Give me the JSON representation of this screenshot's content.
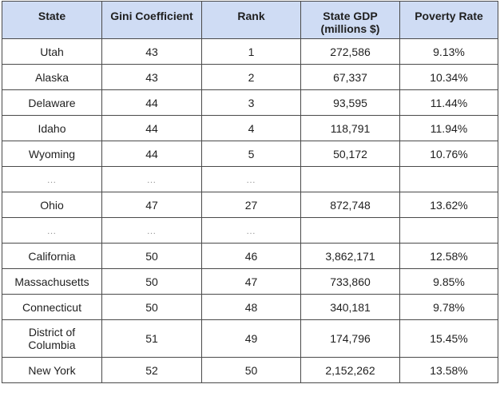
{
  "table": {
    "headers": [
      "State",
      "Gini Coefficient",
      "Rank",
      "State GDP\n(millions $)",
      "Poverty Rate"
    ],
    "rows": [
      [
        "Utah",
        "43",
        "1",
        "272,586",
        "9.13%"
      ],
      [
        "Alaska",
        "43",
        "2",
        "67,337",
        "10.34%"
      ],
      [
        "Delaware",
        "44",
        "3",
        "93,595",
        "11.44%"
      ],
      [
        "Idaho",
        "44",
        "4",
        "118,791",
        "11.94%"
      ],
      [
        "Wyoming",
        "44",
        "5",
        "50,172",
        "10.76%"
      ],
      [
        "…",
        "…",
        "…",
        "",
        ""
      ],
      [
        "Ohio",
        "47",
        "27",
        "872,748",
        "13.62%"
      ],
      [
        "…",
        "…",
        "…",
        "",
        ""
      ],
      [
        "California",
        "50",
        "46",
        "3,862,171",
        "12.58%"
      ],
      [
        "Massachusetts",
        "50",
        "47",
        "733,860",
        "9.85%"
      ],
      [
        "Connecticut",
        "50",
        "48",
        "340,181",
        "9.78%"
      ],
      [
        "District of Columbia",
        "51",
        "49",
        "174,796",
        "15.45%"
      ],
      [
        "New York",
        "52",
        "50",
        "2,152,262",
        "13.58%"
      ]
    ]
  },
  "colors": {
    "header_bg": "#cfdcf4",
    "border": "#4a4a4a",
    "ellipsis": "#9a9a9a"
  }
}
